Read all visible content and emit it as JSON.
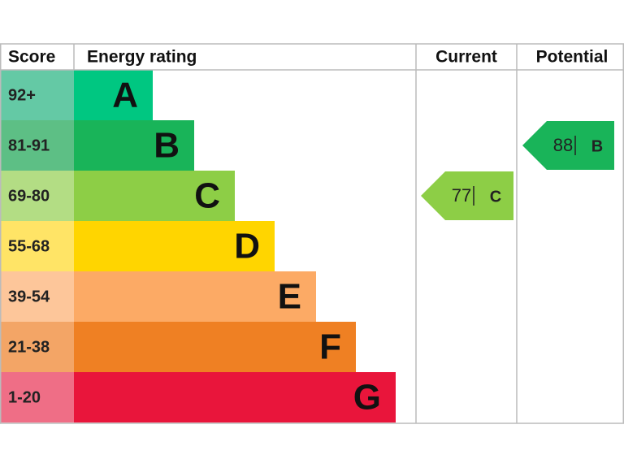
{
  "header": {
    "score": "Score",
    "energy_rating": "Energy rating",
    "current": "Current",
    "potential": "Potential"
  },
  "bands": [
    {
      "score": "92+",
      "letter": "A"
    },
    {
      "score": "81-91",
      "letter": "B"
    },
    {
      "score": "69-80",
      "letter": "C"
    },
    {
      "score": "55-68",
      "letter": "D"
    },
    {
      "score": "39-54",
      "letter": "E"
    },
    {
      "score": "21-38",
      "letter": "F"
    },
    {
      "score": "1-20",
      "letter": "G"
    }
  ],
  "current": {
    "value": 77,
    "letter": "C"
  },
  "potential": {
    "value": 88,
    "letter": "B"
  }
}
